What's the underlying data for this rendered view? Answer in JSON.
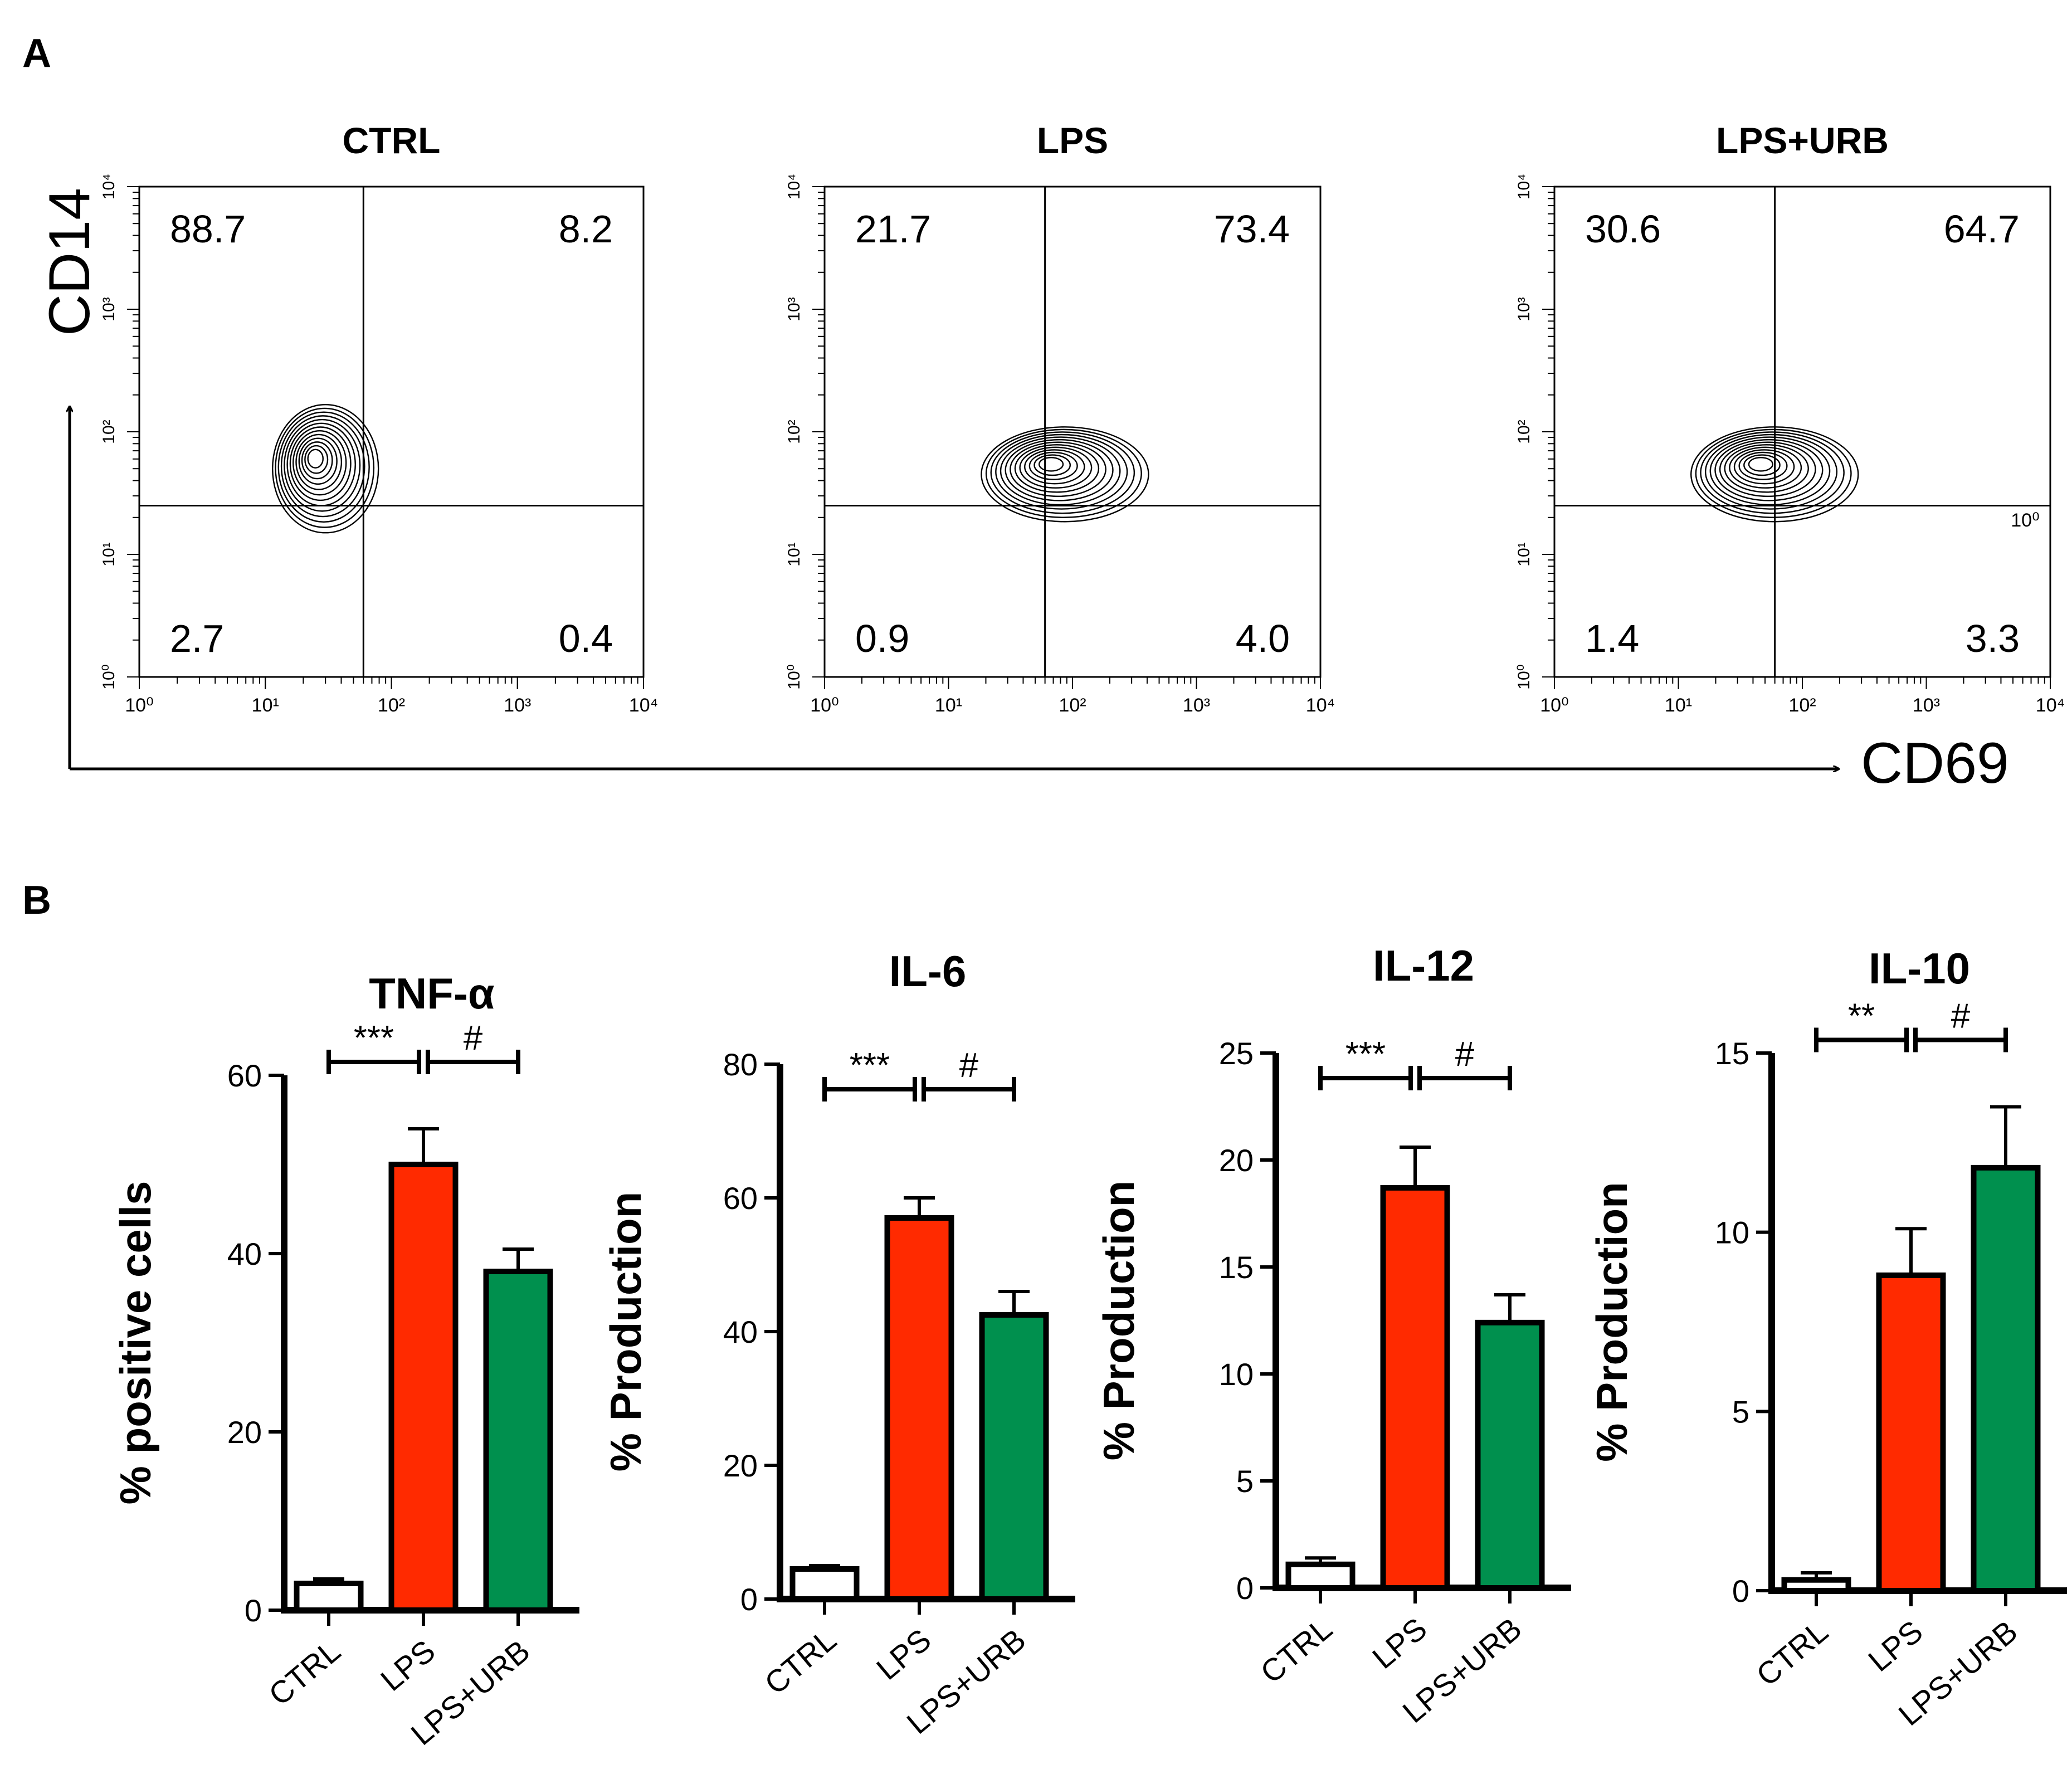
{
  "panel_labels": [
    "A",
    "B"
  ],
  "colors": {
    "ctrl": "#ffffff",
    "lps": "#ff2a00",
    "lps_urb": "#00904e",
    "axis": "#000000"
  },
  "flow": {
    "y_axis_label": "CD14",
    "x_axis_label": "CD69",
    "tick_labels": [
      "10⁰",
      "10¹",
      "10²",
      "10³",
      "10⁴"
    ],
    "stray_label": "10⁰"
  },
  "chart_data": [
    {
      "type": "contour",
      "title": "CTRL",
      "xlabel": "CD69",
      "ylabel": "CD14",
      "xscale": "log",
      "yscale": "log",
      "xlim": [
        1,
        10000
      ],
      "ylim": [
        1,
        10000
      ],
      "quadrant_gate": {
        "x": 60,
        "y": 25
      },
      "quadrants": {
        "upper_left": "88.7",
        "upper_right": "8.2",
        "lower_left": "2.7",
        "lower_right": "0.4"
      },
      "population_center": {
        "x": 30,
        "y": 50
      }
    },
    {
      "type": "contour",
      "title": "LPS",
      "xlabel": "CD69",
      "ylabel": "CD14",
      "xscale": "log",
      "yscale": "log",
      "xlim": [
        1,
        10000
      ],
      "ylim": [
        1,
        10000
      ],
      "quadrant_gate": {
        "x": 60,
        "y": 25
      },
      "quadrants": {
        "upper_left": "21.7",
        "upper_right": "73.4",
        "lower_left": "0.9",
        "lower_right": "4.0"
      },
      "population_center": {
        "x": 80,
        "y": 45
      }
    },
    {
      "type": "contour",
      "title": "LPS+URB",
      "xlabel": "CD69",
      "ylabel": "CD14",
      "xscale": "log",
      "yscale": "log",
      "xlim": [
        1,
        10000
      ],
      "ylim": [
        1,
        10000
      ],
      "quadrant_gate": {
        "x": 60,
        "y": 25
      },
      "quadrants": {
        "upper_left": "30.6",
        "upper_right": "64.7",
        "lower_left": "1.4",
        "lower_right": "3.3"
      },
      "population_center": {
        "x": 55,
        "y": 45
      }
    },
    {
      "type": "bar",
      "title": "TNF-α",
      "ylabel": "% positive cells",
      "categories": [
        "CTRL",
        "LPS",
        "LPS+URB"
      ],
      "values": [
        3,
        50,
        38
      ],
      "errors": [
        0.5,
        4,
        2.5
      ],
      "ylim": [
        0,
        60
      ],
      "yticks": [
        0,
        20,
        40,
        60
      ],
      "significance": [
        {
          "from": 0,
          "to": 1,
          "label": "***"
        },
        {
          "from": 1,
          "to": 2,
          "label": "#"
        }
      ]
    },
    {
      "type": "bar",
      "title": "IL-6",
      "ylabel": "% Production",
      "categories": [
        "CTRL",
        "LPS",
        "LPS+URB"
      ],
      "values": [
        4.5,
        57,
        42.5
      ],
      "errors": [
        0.5,
        3,
        3.5
      ],
      "ylim": [
        0,
        80
      ],
      "yticks": [
        0,
        20,
        40,
        60,
        80
      ],
      "significance": [
        {
          "from": 0,
          "to": 1,
          "label": "***"
        },
        {
          "from": 1,
          "to": 2,
          "label": "#"
        }
      ]
    },
    {
      "type": "bar",
      "title": "IL-12",
      "ylabel": "% Production",
      "categories": [
        "CTRL",
        "LPS",
        "LPS+URB"
      ],
      "values": [
        1.1,
        18.7,
        12.4
      ],
      "errors": [
        0.3,
        1.9,
        1.3
      ],
      "ylim": [
        0,
        25
      ],
      "yticks": [
        0,
        5,
        10,
        15,
        20,
        25
      ],
      "significance": [
        {
          "from": 0,
          "to": 1,
          "label": "***"
        },
        {
          "from": 1,
          "to": 2,
          "label": "#"
        }
      ]
    },
    {
      "type": "bar",
      "title": "IL-10",
      "ylabel": "% Production",
      "categories": [
        "CTRL",
        "LPS",
        "LPS+URB"
      ],
      "values": [
        0.3,
        8.8,
        11.8
      ],
      "errors": [
        0.2,
        1.3,
        1.7
      ],
      "ylim": [
        0,
        15
      ],
      "yticks": [
        0,
        5,
        10,
        15
      ],
      "significance": [
        {
          "from": 0,
          "to": 1,
          "label": "**"
        },
        {
          "from": 1,
          "to": 2,
          "label": "#"
        }
      ]
    }
  ]
}
